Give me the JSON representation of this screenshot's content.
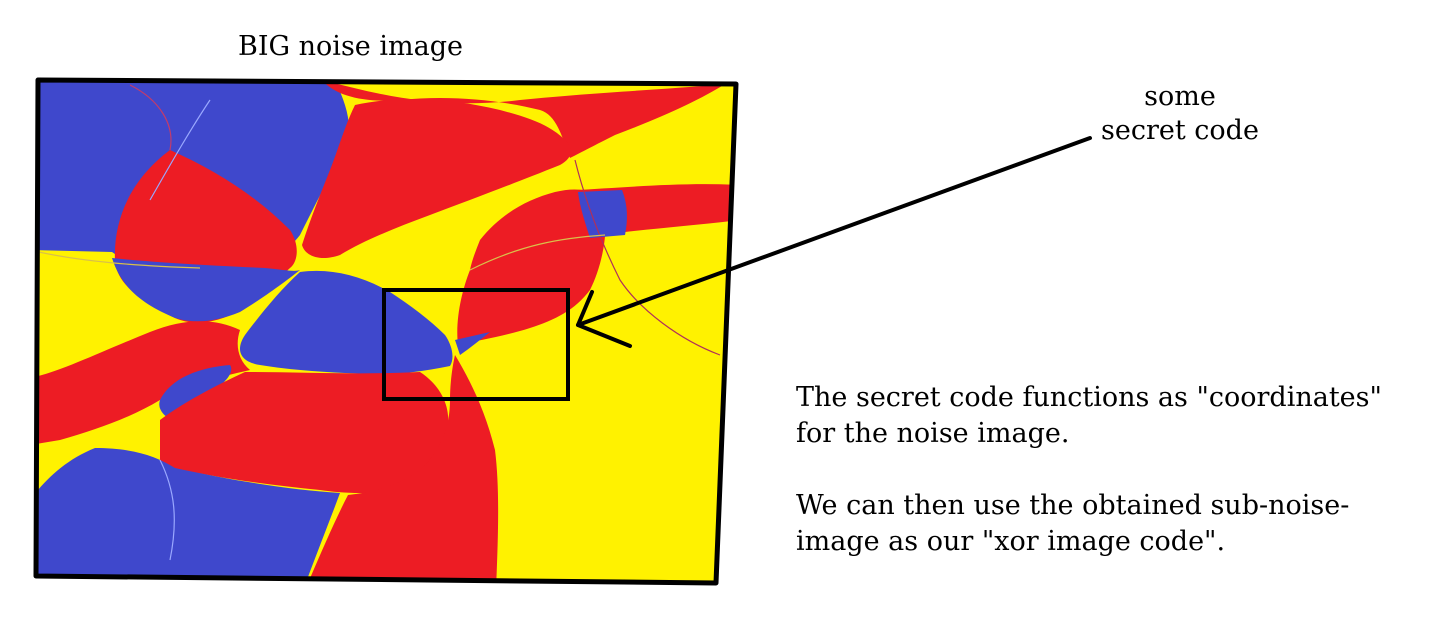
{
  "title": "BIG noise image",
  "secret_label": {
    "line1": "some",
    "line2": "secret code"
  },
  "explanation": {
    "para1_line1": "The secret code functions as \"coordinates\"",
    "para1_line2": "for the noise image.",
    "para2_line1": "We can then use the obtained sub-noise-",
    "para2_line2": "image as our \"xor image code\"."
  },
  "colors": {
    "blue": "#3F48CC",
    "red": "#ED1C24",
    "yellow": "#FFF200",
    "outline": "#000000"
  }
}
